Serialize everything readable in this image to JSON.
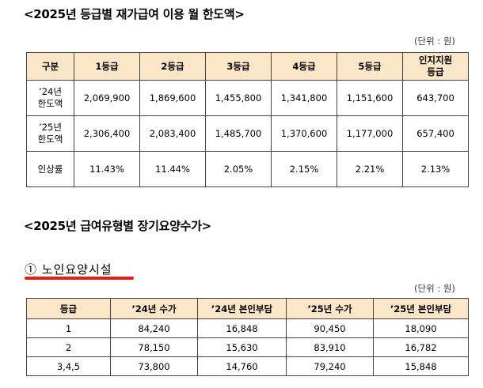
{
  "section1": {
    "title": "<2025년 등급별 재가급여 이용 월 한도액>",
    "unit": "(단위 : 원)",
    "headers": [
      "구분",
      "1등급",
      "2등급",
      "3등급",
      "4등급",
      "5등급",
      "인지지원\n등급"
    ],
    "rows": [
      {
        "label": "’24년\n한도액",
        "values": [
          "2,069,900",
          "1,869,600",
          "1,455,800",
          "1,341,800",
          "1,151,600",
          "643,700"
        ]
      },
      {
        "label": "’25년\n한도액",
        "values": [
          "2,306,400",
          "2,083,400",
          "1,485,700",
          "1,370,600",
          "1,177,000",
          "657,400"
        ]
      },
      {
        "label": "인상률",
        "values": [
          "11.43%",
          "11.44%",
          "2.05%",
          "2.15%",
          "2.21%",
          "2.13%"
        ]
      }
    ]
  },
  "section2": {
    "title": "<2025년 급여유형별 장기요양수가>",
    "subtitle": "① 노인요양시설",
    "unit": "(단위 : 원)",
    "headers": [
      "등급",
      "’24년 수가",
      "’24년 본인부담",
      "’25년 수가",
      "’25년 본인부담"
    ],
    "rows": [
      [
        "1",
        "84,240",
        "16,848",
        "90,450",
        "18,090"
      ],
      [
        "2",
        "78,150",
        "15,630",
        "83,910",
        "16,782"
      ],
      [
        "3,4,5",
        "73,800",
        "14,760",
        "79,240",
        "15,848"
      ]
    ]
  }
}
